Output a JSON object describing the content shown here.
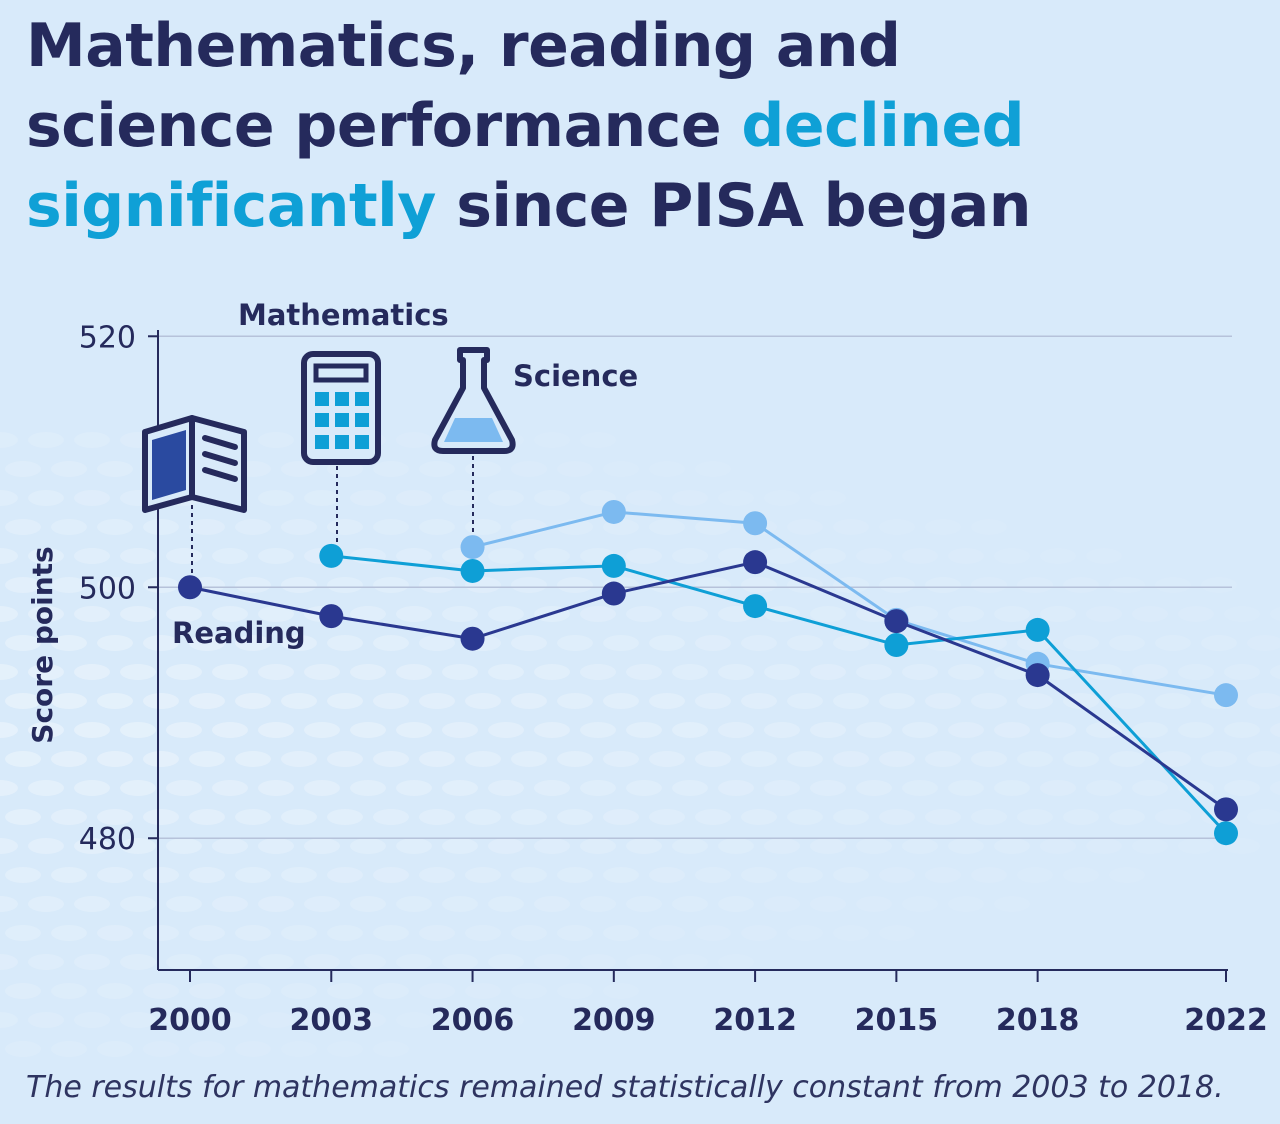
{
  "title": {
    "part1": "Mathematics, reading and science performance ",
    "highlight": "declined significantly",
    "part2": " since PISA began"
  },
  "colors": {
    "text": "#252a5c",
    "highlight": "#0fa0d6",
    "background": "#d8eafa",
    "reading": "#2a3890",
    "mathematics": "#0e9fd6",
    "science": "#7cbaf0"
  },
  "icons": {
    "reading": "book-icon",
    "mathematics": "calculator-icon",
    "science": "flask-icon"
  },
  "chart_data": {
    "type": "line",
    "ylabel": "Score points",
    "xlabel": "",
    "x": [
      2000,
      2003,
      2006,
      2009,
      2012,
      2015,
      2018,
      2022
    ],
    "x_tick_labels": [
      "2000",
      "2003",
      "2006",
      "2009",
      "2012",
      "2015",
      "2018",
      "2022"
    ],
    "y_ticks": [
      480,
      500,
      520
    ],
    "y_tick_labels": [
      "480",
      "500",
      "520"
    ],
    "ylim": [
      469.5,
      520.5
    ],
    "grid": "horizontal",
    "series": [
      {
        "name": "Reading",
        "key": "reading",
        "x": [
          2000,
          2003,
          2006,
          2009,
          2012,
          2015,
          2018,
          2022
        ],
        "values": [
          500.0,
          497.7,
          495.9,
          499.5,
          502.0,
          497.3,
          493.0,
          482.3
        ]
      },
      {
        "name": "Mathematics",
        "key": "mathematics",
        "x": [
          2003,
          2006,
          2009,
          2012,
          2015,
          2018,
          2022
        ],
        "values": [
          502.5,
          501.3,
          501.7,
          498.5,
          495.4,
          496.6,
          480.4
        ]
      },
      {
        "name": "Science",
        "key": "science",
        "x": [
          2006,
          2009,
          2012,
          2015,
          2018,
          2022
        ],
        "values": [
          503.2,
          506.0,
          505.1,
          497.4,
          493.9,
          491.4
        ]
      }
    ]
  },
  "footnote": "The results for mathematics remained statistically constant from 2003 to 2018."
}
